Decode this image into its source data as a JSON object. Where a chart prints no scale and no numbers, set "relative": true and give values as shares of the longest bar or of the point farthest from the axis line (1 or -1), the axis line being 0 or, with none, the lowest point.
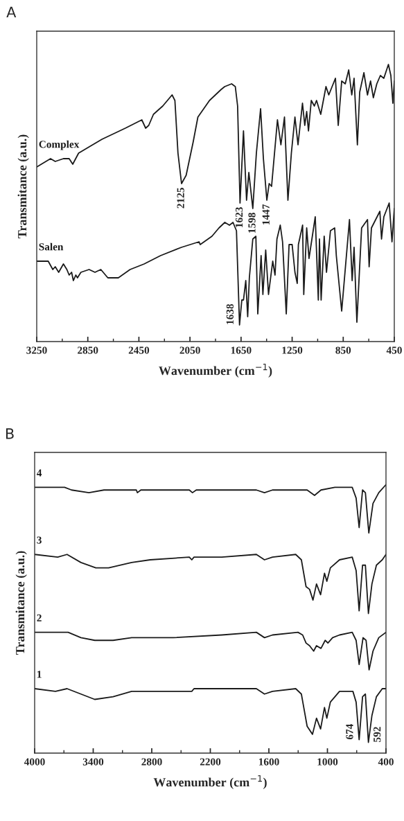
{
  "chart_data": [
    {
      "type": "line",
      "title": "A",
      "xlabel": "Wavenumber (cm$^{−1}$)",
      "ylabel": "Transmitance (a.u.)",
      "relative": true,
      "tick_labels": "x",
      "xlim": [
        3250,
        450
      ],
      "xticks": [
        3250,
        2850,
        2450,
        2050,
        1650,
        1250,
        850,
        450
      ],
      "series": [
        {
          "name": "Complex",
          "color": "#1a1a1a",
          "x": [
            3250,
            3142,
            3105,
            3041,
            2996,
            2968,
            2922,
            2849,
            2739,
            2556,
            2427,
            2397,
            2373,
            2336,
            2263,
            2190,
            2168,
            2144,
            2116,
            2080,
            2025,
            1988,
            1897,
            1805,
            1778,
            1724,
            1695,
            1677,
            1658,
            1631,
            1607,
            1589,
            1558,
            1530,
            1497,
            1475,
            1448,
            1430,
            1411,
            1365,
            1338,
            1310,
            1283,
            1256,
            1228,
            1204,
            1169,
            1151,
            1136,
            1122,
            1100,
            1076,
            1059,
            1026,
            985,
            963,
            911,
            889,
            862,
            834,
            807,
            783,
            765,
            739,
            721,
            688,
            660,
            636,
            614,
            587,
            559,
            532,
            496,
            477,
            461,
            450
          ],
          "values": [
            0.63,
            0.66,
            0.65,
            0.66,
            0.66,
            0.64,
            0.68,
            0.7,
            0.73,
            0.77,
            0.8,
            0.77,
            0.78,
            0.82,
            0.85,
            0.89,
            0.87,
            0.68,
            0.57,
            0.6,
            0.72,
            0.81,
            0.87,
            0.91,
            0.92,
            0.93,
            0.92,
            0.85,
            0.5,
            0.76,
            0.51,
            0.61,
            0.48,
            0.68,
            0.84,
            0.66,
            0.51,
            0.57,
            0.56,
            0.8,
            0.71,
            0.81,
            0.51,
            0.68,
            0.81,
            0.71,
            0.86,
            0.78,
            0.83,
            0.76,
            0.87,
            0.85,
            0.87,
            0.82,
            0.92,
            0.89,
            0.95,
            0.78,
            0.94,
            0.93,
            0.98,
            0.89,
            0.95,
            0.71,
            0.9,
            0.97,
            0.89,
            0.94,
            0.88,
            0.93,
            0.96,
            0.95,
            1.0,
            0.96,
            0.86,
            0.94
          ]
        },
        {
          "name": "Salen",
          "color": "#1a1a1a",
          "x": [
            3250,
            3160,
            3124,
            3105,
            3078,
            3041,
            3014,
            2996,
            2977,
            2963,
            2944,
            2931,
            2904,
            2840,
            2794,
            2748,
            2693,
            2611,
            2519,
            2409,
            2281,
            2117,
            1979,
            1970,
            1878,
            1823,
            1777,
            1741,
            1713,
            1686,
            1662,
            1644,
            1631,
            1613,
            1598,
            1585,
            1558,
            1534,
            1519,
            1493,
            1479,
            1457,
            1435,
            1402,
            1384,
            1369,
            1343,
            1325,
            1296,
            1274,
            1250,
            1228,
            1210,
            1201,
            1168,
            1159,
            1136,
            1118,
            1069,
            1045,
            1036,
            1023,
            999,
            981,
            950,
            917,
            904,
            862,
            801,
            780,
            765,
            743,
            706,
            660,
            647,
            629,
            563,
            550,
            532,
            490,
            468,
            450
          ],
          "values": [
            0.29,
            0.29,
            0.26,
            0.27,
            0.25,
            0.28,
            0.26,
            0.24,
            0.25,
            0.22,
            0.24,
            0.23,
            0.25,
            0.26,
            0.25,
            0.26,
            0.23,
            0.23,
            0.26,
            0.28,
            0.31,
            0.34,
            0.36,
            0.35,
            0.38,
            0.41,
            0.43,
            0.42,
            0.43,
            0.4,
            0.06,
            0.15,
            0.15,
            0.22,
            0.09,
            0.23,
            0.37,
            0.38,
            0.1,
            0.31,
            0.17,
            0.33,
            0.17,
            0.29,
            0.24,
            0.37,
            0.42,
            0.36,
            0.1,
            0.35,
            0.35,
            0.25,
            0.21,
            0.35,
            0.42,
            0.17,
            0.41,
            0.3,
            0.45,
            0.15,
            0.37,
            0.15,
            0.38,
            0.25,
            0.4,
            0.41,
            0.31,
            0.11,
            0.44,
            0.22,
            0.34,
            0.07,
            0.41,
            0.44,
            0.27,
            0.41,
            0.47,
            0.37,
            0.45,
            0.5,
            0.36,
            0.48
          ]
        }
      ],
      "annotations": [
        {
          "text": "2125",
          "x": 2116,
          "y": 0.57
        },
        {
          "text": "1623",
          "x": 1658,
          "y": 0.5
        },
        {
          "text": "1598",
          "x": 1558,
          "y": 0.48
        },
        {
          "text": "1447",
          "x": 1448,
          "y": 0.51
        },
        {
          "text": "1638",
          "x": 1662,
          "y": 0.06
        }
      ]
    },
    {
      "type": "line",
      "title": "B",
      "xlabel": "Wavenumber (cm$^{−1}$)",
      "ylabel": "Transmitance (a.u.)",
      "relative": true,
      "tick_labels": "x",
      "xlim": [
        4000,
        400
      ],
      "xticks": [
        4000,
        3400,
        2800,
        2200,
        1600,
        1000,
        400
      ],
      "series": [
        {
          "name": "4",
          "color": "#1a1a1a",
          "x": [
            4000,
            3693,
            3622,
            3444,
            3290,
            2958,
            2947,
            2912,
            2415,
            2383,
            2344,
            2154,
            1728,
            1645,
            1563,
            1373,
            1279,
            1208,
            1132,
            1066,
            924,
            746,
            706,
            675,
            640,
            611,
            576,
            533,
            474,
            400
          ],
          "values": [
            0.99,
            0.99,
            0.98,
            0.97,
            0.98,
            0.98,
            0.97,
            0.98,
            0.98,
            0.97,
            0.98,
            0.98,
            0.98,
            0.97,
            0.98,
            0.98,
            0.98,
            0.98,
            0.96,
            0.98,
            0.99,
            0.99,
            0.95,
            0.84,
            0.98,
            0.97,
            0.82,
            0.93,
            0.97,
            1.0
          ]
        },
        {
          "name": "3",
          "color": "#1a1a1a",
          "x": [
            4000,
            3764,
            3668,
            3526,
            3373,
            3242,
            3006,
            2816,
            2415,
            2390,
            2367,
            2083,
            1728,
            1645,
            1563,
            1325,
            1267,
            1219,
            1183,
            1148,
            1112,
            1070,
            1030,
            1006,
            970,
            876,
            746,
            706,
            675,
            640,
            611,
            580,
            544,
            498,
            438,
            400
          ],
          "values": [
            0.74,
            0.73,
            0.74,
            0.71,
            0.69,
            0.69,
            0.71,
            0.72,
            0.73,
            0.72,
            0.73,
            0.73,
            0.74,
            0.72,
            0.73,
            0.74,
            0.72,
            0.62,
            0.61,
            0.57,
            0.63,
            0.59,
            0.67,
            0.64,
            0.69,
            0.72,
            0.73,
            0.68,
            0.53,
            0.7,
            0.7,
            0.52,
            0.63,
            0.7,
            0.72,
            0.74
          ]
        },
        {
          "name": "2",
          "color": "#1a1a1a",
          "x": [
            4000,
            3764,
            3657,
            3526,
            3384,
            3196,
            3006,
            2958,
            2887,
            2580,
            2083,
            1728,
            1645,
            1563,
            1302,
            1254,
            1219,
            1183,
            1141,
            1112,
            1066,
            1023,
            995,
            947,
            876,
            746,
            706,
            675,
            635,
            604,
            573,
            533,
            474,
            400
          ],
          "values": [
            0.45,
            0.45,
            0.45,
            0.43,
            0.42,
            0.42,
            0.43,
            0.43,
            0.43,
            0.43,
            0.44,
            0.45,
            0.43,
            0.44,
            0.45,
            0.44,
            0.41,
            0.4,
            0.38,
            0.4,
            0.39,
            0.42,
            0.41,
            0.43,
            0.44,
            0.45,
            0.42,
            0.33,
            0.43,
            0.42,
            0.31,
            0.38,
            0.43,
            0.45
          ]
        },
        {
          "name": "1",
          "color": "#1a1a1a",
          "x": [
            4000,
            3787,
            3668,
            3526,
            3384,
            3196,
            3006,
            2887,
            2415,
            2390,
            2367,
            2083,
            1728,
            1645,
            1563,
            1325,
            1267,
            1208,
            1153,
            1112,
            1070,
            1030,
            1006,
            970,
            876,
            739,
            706,
            675,
            640,
            611,
            580,
            544,
            498,
            438,
            400
          ],
          "values": [
            0.24,
            0.23,
            0.24,
            0.22,
            0.2,
            0.21,
            0.23,
            0.23,
            0.23,
            0.23,
            0.24,
            0.24,
            0.24,
            0.22,
            0.23,
            0.24,
            0.22,
            0.1,
            0.07,
            0.13,
            0.09,
            0.17,
            0.13,
            0.19,
            0.23,
            0.23,
            0.19,
            0.05,
            0.21,
            0.22,
            0.04,
            0.14,
            0.21,
            0.24,
            0.24
          ]
        }
      ],
      "annotations": [
        {
          "text": "674",
          "x": 675,
          "y": 0.05
        },
        {
          "text": "592",
          "x": 580,
          "y": 0.04
        }
      ]
    }
  ]
}
